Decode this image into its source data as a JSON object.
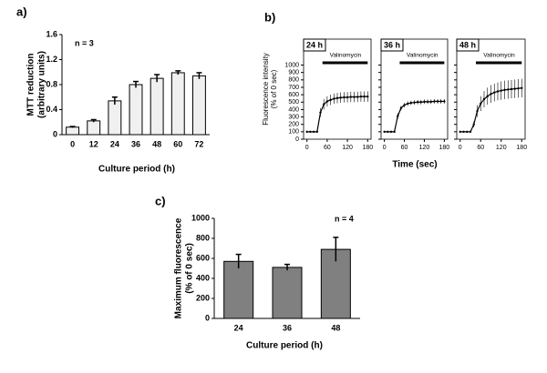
{
  "chart_data": [
    {
      "type": "bar",
      "panel_label": "a)",
      "annotation": "n = 3",
      "y_label": [
        "MTT reduction",
        "(arbitrary units)"
      ],
      "x_label": "Culture period (h)",
      "categories": [
        "0",
        "12",
        "24",
        "36",
        "48",
        "60",
        "72"
      ],
      "values": [
        0.12,
        0.22,
        0.54,
        0.8,
        0.9,
        0.99,
        0.94
      ],
      "errors": [
        0.01,
        0.02,
        0.06,
        0.05,
        0.06,
        0.03,
        0.05
      ],
      "color": "#f0f0f0",
      "ylim": [
        0,
        1.6
      ],
      "yticks": [
        0,
        0.4,
        0.8,
        1.2,
        1.6
      ]
    },
    {
      "type": "line",
      "panel_label": "b)",
      "title": "24 h",
      "annotation": "Valinomycin",
      "y_label": [
        "Fluorescence intensity",
        "(% of 0 sec)"
      ],
      "x": [
        0,
        10,
        20,
        30,
        40,
        50,
        60,
        70,
        80,
        90,
        100,
        110,
        120,
        130,
        140,
        150,
        160,
        170,
        180
      ],
      "values": [
        100,
        100,
        100,
        100,
        360,
        470,
        510,
        530,
        545,
        555,
        560,
        565,
        565,
        570,
        570,
        570,
        575,
        575,
        575
      ],
      "errors": [
        10,
        10,
        10,
        10,
        60,
        70,
        70,
        70,
        70,
        70,
        70,
        70,
        70,
        70,
        70,
        70,
        70,
        70,
        70
      ],
      "color": "#000000",
      "xlim": [
        -10,
        190
      ],
      "xticks": [
        0,
        60,
        120,
        180
      ],
      "ylim": [
        0,
        1350
      ],
      "yticks": [
        0,
        100,
        200,
        300,
        400,
        500,
        600,
        700,
        800,
        900,
        1000
      ]
    },
    {
      "type": "line",
      "title": "36 h",
      "annotation": "Valinomycin",
      "x_label": "Time (sec)",
      "x": [
        0,
        10,
        20,
        30,
        40,
        50,
        60,
        70,
        80,
        90,
        100,
        110,
        120,
        130,
        140,
        150,
        160,
        170,
        180
      ],
      "values": [
        100,
        100,
        100,
        100,
        310,
        420,
        460,
        480,
        490,
        495,
        500,
        500,
        505,
        505,
        505,
        510,
        510,
        510,
        510
      ],
      "errors": [
        10,
        10,
        10,
        10,
        40,
        30,
        30,
        30,
        30,
        30,
        30,
        30,
        30,
        30,
        30,
        30,
        30,
        30,
        30
      ],
      "color": "#000000",
      "xlim": [
        -10,
        190
      ],
      "xticks": [
        0,
        60,
        120,
        180
      ],
      "ylim": [
        0,
        1350
      ],
      "yticks": [
        0,
        100,
        200,
        300,
        400,
        500,
        600,
        700,
        800,
        900,
        1000
      ]
    },
    {
      "type": "line",
      "title": "48 h",
      "annotation": "Valinomycin",
      "x": [
        0,
        10,
        20,
        30,
        40,
        50,
        60,
        70,
        80,
        90,
        100,
        110,
        120,
        130,
        140,
        150,
        160,
        170,
        180
      ],
      "values": [
        100,
        100,
        100,
        100,
        200,
        380,
        480,
        540,
        580,
        610,
        630,
        645,
        655,
        665,
        670,
        675,
        680,
        685,
        690
      ],
      "errors": [
        10,
        10,
        10,
        10,
        40,
        80,
        100,
        110,
        115,
        120,
        120,
        120,
        125,
        125,
        125,
        125,
        125,
        125,
        125
      ],
      "color": "#000000",
      "xlim": [
        -10,
        190
      ],
      "xticks": [
        0,
        60,
        120,
        180
      ],
      "ylim": [
        0,
        1350
      ],
      "yticks": [
        0,
        100,
        200,
        300,
        400,
        500,
        600,
        700,
        800,
        900,
        1000
      ]
    },
    {
      "type": "bar",
      "panel_label": "c)",
      "annotation": "n = 4",
      "y_label": [
        "Maximum fluorescence",
        "(% of 0 sec)"
      ],
      "x_label": "Culture period (h)",
      "categories": [
        "24",
        "36",
        "48"
      ],
      "values": [
        570,
        510,
        690
      ],
      "errors": [
        70,
        30,
        120
      ],
      "color": "#808080",
      "ylim": [
        0,
        1000
      ],
      "yticks": [
        0,
        200,
        400,
        600,
        800,
        1000
      ]
    }
  ]
}
